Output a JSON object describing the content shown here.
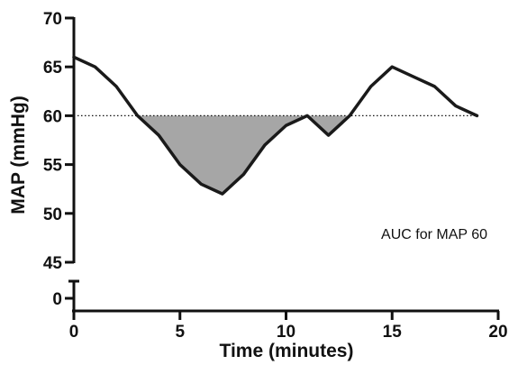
{
  "chart_data": {
    "type": "line",
    "title": "",
    "xlabel": "Time (minutes)",
    "ylabel": "MAP (mmHg)",
    "xlim": [
      0,
      20
    ],
    "ylim": [
      45,
      70
    ],
    "y_axis_break": true,
    "x_ticks": [
      0,
      5,
      10,
      15,
      20
    ],
    "y_ticks": [
      45,
      50,
      55,
      60,
      65,
      70
    ],
    "y_break_tick": 0,
    "x_tick_labels": [
      "0",
      "5",
      "10",
      "15",
      "20"
    ],
    "y_tick_labels": [
      "45",
      "50",
      "55",
      "60",
      "65",
      "70"
    ],
    "y_break_tick_label": "0",
    "reference_line": {
      "y": 60,
      "style": "dotted"
    },
    "shaded_region": {
      "below": 60,
      "color": "#a6a6a6"
    },
    "series": [
      {
        "x": [
          0,
          1,
          2,
          3,
          4,
          5,
          6,
          7,
          8,
          9,
          10,
          11,
          12,
          13,
          14,
          15,
          16,
          17,
          18,
          19
        ],
        "y": [
          66,
          65,
          63,
          60,
          58,
          55,
          53,
          52,
          54,
          57,
          59,
          60,
          58,
          60,
          63,
          65,
          64,
          63,
          61,
          60
        ],
        "color": "#1a1a1a"
      }
    ],
    "annotation": "AUC for MAP 60",
    "grid": false
  }
}
